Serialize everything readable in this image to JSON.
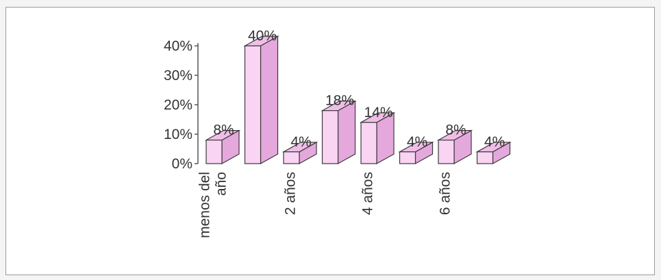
{
  "chart_data": {
    "type": "bar",
    "categories": [
      "menos del año",
      "",
      "2 años",
      "",
      "4 años",
      "",
      "6 años",
      ""
    ],
    "category_label_lines": [
      [
        "menos del",
        "año"
      ],
      [],
      [
        "2 años"
      ],
      [],
      [
        "4 años"
      ],
      [],
      [
        "6 años"
      ],
      []
    ],
    "values": [
      8,
      40,
      4,
      18,
      14,
      4,
      8,
      4
    ],
    "data_labels": [
      "8%",
      "40%",
      "4%",
      "18%",
      "14%",
      "4%",
      "8%",
      "4%"
    ],
    "y_ticks": [
      "0%",
      "10%",
      "20%",
      "30%",
      "40%"
    ],
    "ylim": [
      0,
      40
    ],
    "title": "",
    "xlabel": "",
    "ylabel": "",
    "grid": false,
    "style": "3d-column",
    "colors": {
      "front": "#f9d4f3",
      "side": "#e5a8dc",
      "top": "#f0bde8",
      "edge": "#3a3a3a",
      "axis": "#555555"
    }
  }
}
